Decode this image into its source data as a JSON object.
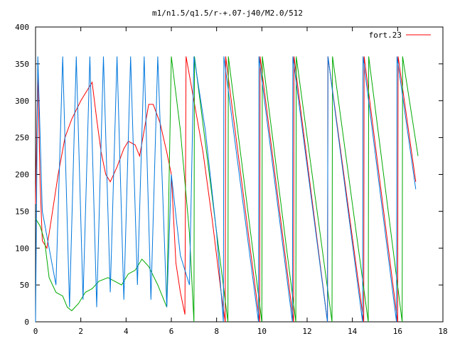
{
  "chart_data": {
    "type": "line",
    "title": "m1/n1.5/q1.5/r-+.07-j40/M2.0/512",
    "xlabel": "",
    "ylabel": "",
    "xlim": [
      0,
      18
    ],
    "ylim": [
      0,
      400
    ],
    "x_ticks": [
      0,
      2,
      4,
      6,
      8,
      10,
      12,
      14,
      16,
      18
    ],
    "y_ticks": [
      0,
      50,
      100,
      150,
      200,
      250,
      300,
      350,
      400
    ],
    "grid": false,
    "legend_position": "top-right",
    "series": [
      {
        "name": "fort.23",
        "color": "#ff0000",
        "points": [
          [
            0.0,
            160
          ],
          [
            0.1,
            340
          ],
          [
            0.2,
            190
          ],
          [
            0.3,
            110
          ],
          [
            0.5,
            100
          ],
          [
            0.7,
            140
          ],
          [
            1.0,
            200
          ],
          [
            1.3,
            250
          ],
          [
            1.6,
            275
          ],
          [
            2.0,
            300
          ],
          [
            2.3,
            315
          ],
          [
            2.5,
            325
          ],
          [
            2.7,
            275
          ],
          [
            2.9,
            230
          ],
          [
            3.1,
            200
          ],
          [
            3.3,
            190
          ],
          [
            3.6,
            210
          ],
          [
            3.9,
            235
          ],
          [
            4.1,
            245
          ],
          [
            4.4,
            240
          ],
          [
            4.6,
            225
          ],
          [
            4.8,
            260
          ],
          [
            5.0,
            295
          ],
          [
            5.2,
            295
          ],
          [
            5.5,
            270
          ],
          [
            5.8,
            230
          ],
          [
            6.0,
            200
          ],
          [
            6.2,
            80
          ],
          [
            6.4,
            40
          ],
          [
            6.6,
            10
          ],
          [
            6.65,
            360
          ],
          [
            7.0,
            300
          ],
          [
            7.4,
            230
          ],
          [
            7.8,
            140
          ],
          [
            8.2,
            40
          ],
          [
            8.38,
            0
          ],
          [
            8.4,
            360
          ],
          [
            9.9,
            0
          ],
          [
            9.92,
            360
          ],
          [
            11.4,
            0
          ],
          [
            11.42,
            360
          ],
          [
            12.9,
            0
          ],
          [
            12.92,
            360
          ],
          [
            14.5,
            0
          ],
          [
            14.52,
            360
          ],
          [
            16.0,
            0
          ],
          [
            16.02,
            360
          ],
          [
            16.8,
            190
          ]
        ]
      },
      {
        "name": "",
        "color": "#00aa00",
        "points": [
          [
            0.0,
            140
          ],
          [
            0.2,
            130
          ],
          [
            0.4,
            110
          ],
          [
            0.6,
            60
          ],
          [
            0.9,
            40
          ],
          [
            1.2,
            35
          ],
          [
            1.4,
            20
          ],
          [
            1.6,
            15
          ],
          [
            1.9,
            25
          ],
          [
            2.2,
            40
          ],
          [
            2.5,
            45
          ],
          [
            2.8,
            55
          ],
          [
            3.2,
            60
          ],
          [
            3.5,
            55
          ],
          [
            3.8,
            50
          ],
          [
            4.1,
            65
          ],
          [
            4.4,
            70
          ],
          [
            4.7,
            85
          ],
          [
            5.0,
            75
          ],
          [
            5.4,
            50
          ],
          [
            5.8,
            20
          ],
          [
            6.0,
            360
          ],
          [
            6.4,
            260
          ],
          [
            6.8,
            120
          ],
          [
            7.0,
            0
          ],
          [
            7.02,
            360
          ],
          [
            8.5,
            0
          ],
          [
            8.52,
            360
          ],
          [
            10.0,
            0
          ],
          [
            10.02,
            360
          ],
          [
            11.5,
            0
          ],
          [
            11.52,
            360
          ],
          [
            13.1,
            0
          ],
          [
            13.12,
            360
          ],
          [
            14.7,
            0
          ],
          [
            14.72,
            360
          ],
          [
            16.2,
            0
          ],
          [
            16.22,
            360
          ],
          [
            16.9,
            225
          ]
        ]
      },
      {
        "name": "",
        "color": "#0077dd",
        "points": [
          [
            0.0,
            0
          ],
          [
            0.1,
            360
          ],
          [
            0.3,
            150
          ],
          [
            0.6,
            100
          ],
          [
            0.9,
            50
          ],
          [
            1.2,
            360
          ],
          [
            1.5,
            20
          ],
          [
            1.8,
            360
          ],
          [
            2.1,
            30
          ],
          [
            2.4,
            360
          ],
          [
            2.7,
            20
          ],
          [
            3.0,
            360
          ],
          [
            3.3,
            40
          ],
          [
            3.6,
            360
          ],
          [
            3.9,
            30
          ],
          [
            4.2,
            360
          ],
          [
            4.5,
            50
          ],
          [
            4.8,
            360
          ],
          [
            5.1,
            30
          ],
          [
            5.4,
            360
          ],
          [
            5.8,
            20
          ],
          [
            6.0,
            200
          ],
          [
            6.4,
            90
          ],
          [
            6.8,
            50
          ],
          [
            7.0,
            360
          ],
          [
            7.5,
            260
          ],
          [
            8.0,
            120
          ],
          [
            8.3,
            0
          ],
          [
            8.32,
            360
          ],
          [
            9.85,
            0
          ],
          [
            9.87,
            360
          ],
          [
            11.35,
            0
          ],
          [
            11.37,
            360
          ],
          [
            12.9,
            0
          ],
          [
            12.92,
            360
          ],
          [
            14.45,
            0
          ],
          [
            14.47,
            360
          ],
          [
            15.95,
            0
          ],
          [
            15.97,
            360
          ],
          [
            16.8,
            180
          ]
        ]
      }
    ]
  }
}
